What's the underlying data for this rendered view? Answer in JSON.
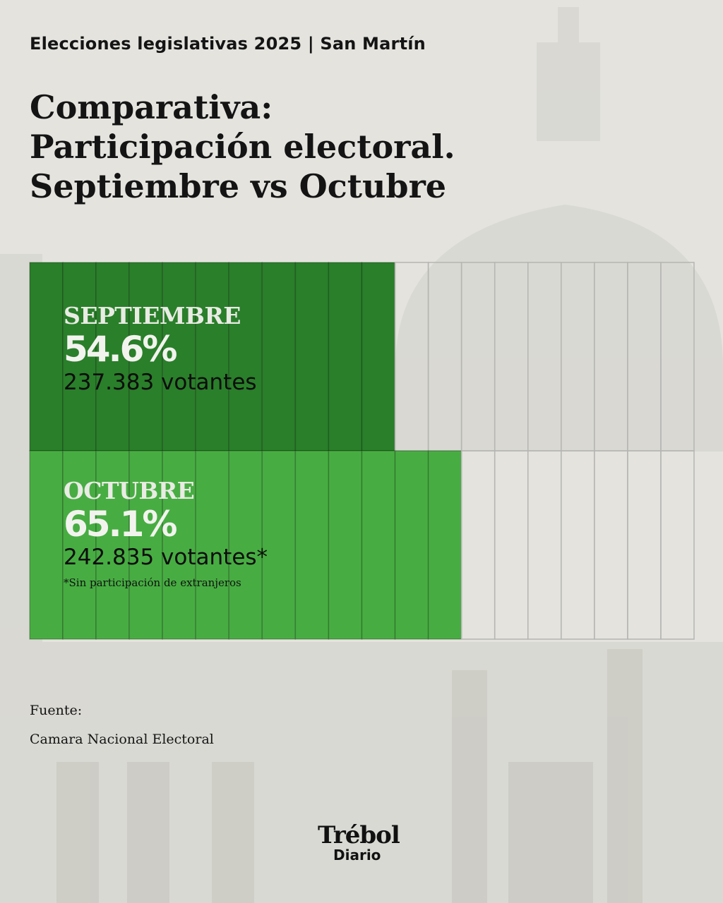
{
  "header": {
    "subtitle": "Elecciones legislativas 2025 | San Martín",
    "title_lines": [
      "Comparativa:",
      "Participación electoral.",
      "Septiembre vs Octubre"
    ]
  },
  "chart_data": {
    "type": "bar",
    "orientation": "horizontal",
    "title": "Comparativa: Participación electoral. Septiembre vs Octubre",
    "unit": "%",
    "xlim": [
      0,
      100
    ],
    "grid_columns": 20,
    "series": [
      {
        "name": "SEPTIEMBRE",
        "percent_label": "54.6%",
        "value": 54.6,
        "voters_label": "237.383 votantes",
        "voters": 237383,
        "color": "#2a7f2a"
      },
      {
        "name": "OCTUBRE",
        "percent_label": "65.1%",
        "value": 65.1,
        "voters_label": "242.835 votantes*",
        "voters": 242835,
        "color": "#47ad42",
        "footnote": "*Sin participación de extranjeros"
      }
    ],
    "grid_color": "#b5b5b2"
  },
  "source": {
    "label": "Fuente:",
    "text": "Camara Nacional Electoral"
  },
  "brand": {
    "name": "Trébol",
    "sub": "Diario"
  }
}
